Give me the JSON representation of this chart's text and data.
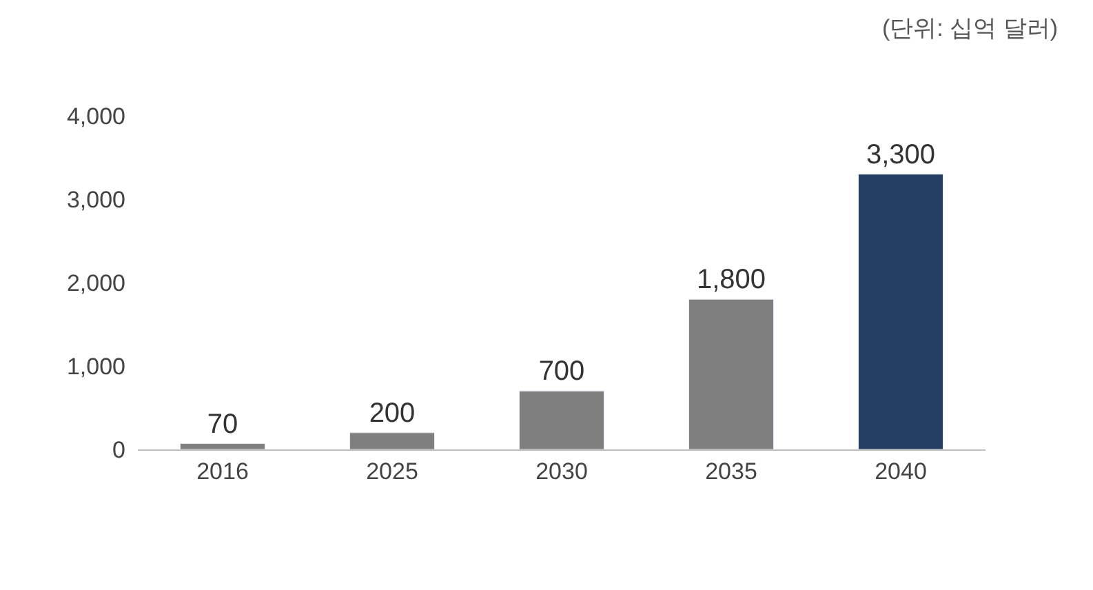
{
  "chart_data": {
    "type": "bar",
    "subtitle": "(단위: 십억 달러)",
    "categories": [
      "2016",
      "2025",
      "2030",
      "2035",
      "2040"
    ],
    "values": [
      70,
      200,
      700,
      1800,
      3300
    ],
    "colors": [
      "#7f7f7f",
      "#7f7f7f",
      "#7f7f7f",
      "#7f7f7f",
      "#253f62"
    ],
    "ylim": [
      0,
      4000
    ],
    "yticks": [
      {
        "value": 0,
        "label": "0"
      },
      {
        "value": 1000,
        "label": "1,000"
      },
      {
        "value": 2000,
        "label": "2,000"
      },
      {
        "value": 3000,
        "label": "3,000"
      },
      {
        "value": 4000,
        "label": "4,000"
      }
    ],
    "value_labels": [
      "70",
      "200",
      "700",
      "1,800",
      "3,300"
    ]
  }
}
